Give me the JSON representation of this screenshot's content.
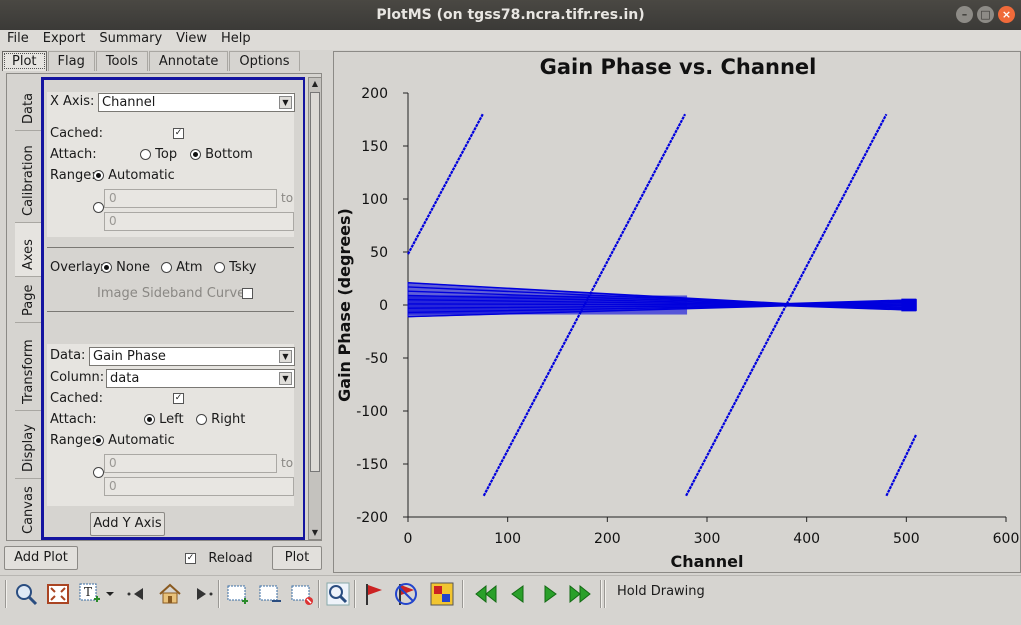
{
  "window": {
    "title": "PlotMS (on tgss78.ncra.tifr.res.in)"
  },
  "menubar": [
    "File",
    "Export",
    "Summary",
    "View",
    "Help"
  ],
  "tabs": [
    "Plot",
    "Flag",
    "Tools",
    "Annotate",
    "Options"
  ],
  "side_tabs": [
    "Data",
    "Calibration",
    "Axes",
    "Page",
    "Transform",
    "Display",
    "Canvas"
  ],
  "axes": {
    "x_axis_label": "X Axis:",
    "x_axis_value": "Channel",
    "cached_label": "Cached:",
    "attach_label": "Attach:",
    "attach_top": "Top",
    "attach_bottom": "Bottom",
    "range_label": "Range:",
    "automatic": "Automatic",
    "range_min": "0",
    "range_max": "0",
    "to": "to",
    "overlay_label": "Overlay:",
    "overlay_none": "None",
    "overlay_atm": "Atm",
    "overlay_tsky": "Tsky",
    "image_sideband": "Image Sideband Curve:",
    "data_label": "Data:",
    "data_value": "Gain Phase",
    "column_label": "Column:",
    "column_value": "data",
    "y_cached_label": "Cached:",
    "y_attach_label": "Attach:",
    "attach_left": "Left",
    "attach_right": "Right",
    "y_range_label": "Range:",
    "y_automatic": "Automatic",
    "y_range_min": "0",
    "y_range_max": "0",
    "y_to": "to",
    "add_y_axis": "Add Y Axis"
  },
  "bottom_buttons": {
    "add_plot": "Add Plot",
    "reload": "Reload",
    "plot": "Plot"
  },
  "toolbar": {
    "hold_drawing": "Hold Drawing"
  },
  "colors": {
    "series": "#0000dd",
    "frame": "#1414a0"
  },
  "chart_data": {
    "type": "scatter",
    "title": "Gain Phase vs. Channel",
    "xlabel": "Channel",
    "ylabel": "Gain Phase (degrees)",
    "xlim": [
      0,
      600
    ],
    "ylim": [
      -200,
      200
    ],
    "xticks": [
      0,
      100,
      200,
      300,
      400,
      500,
      600
    ],
    "yticks": [
      200,
      150,
      100,
      50,
      0,
      -50,
      -100,
      -150,
      -200
    ],
    "phase_wraps": [
      {
        "x": [
          0,
          75
        ],
        "y": [
          48,
          180
        ]
      },
      {
        "x": [
          76,
          278
        ],
        "y": [
          -180,
          180
        ]
      },
      {
        "x": [
          279,
          480
        ],
        "y": [
          -180,
          180
        ]
      },
      {
        "x": [
          480,
          510
        ],
        "y": [
          -180,
          -122
        ]
      }
    ],
    "band": {
      "x": [
        0,
        510
      ],
      "y_upper_start": 21,
      "y_lower_start": -11,
      "y_upper_end": 5,
      "y_lower_end": -5,
      "x_pinch": 380
    }
  }
}
